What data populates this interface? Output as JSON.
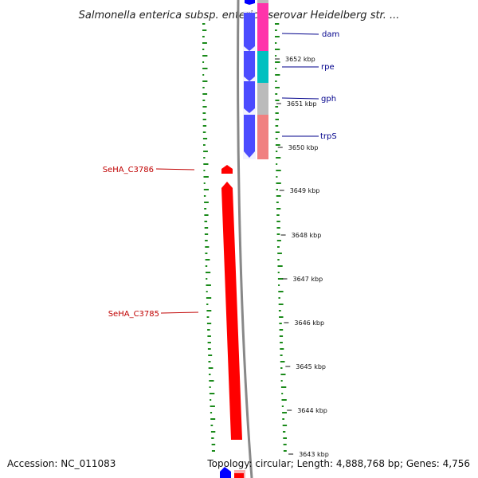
{
  "title": "Salmonella enterica subsp. enterica serovar Heidelberg str. ...",
  "accession": "Accession: NC_011083",
  "topology": "Topology: circular; Length: 4,888,768 bp; Genes: 4,756",
  "ruler": {
    "labels": [
      "3652 kbp",
      "3651 kbp",
      "3650 kbp",
      "3649 kbp",
      "3648 kbp",
      "3647 kbp",
      "3646 kbp",
      "3645 kbp",
      "3644 kbp",
      "3643 kbp"
    ]
  },
  "genes": {
    "forward": [
      {
        "name": "dam",
        "color": "#0000ff"
      },
      {
        "name": "rpe",
        "color": "#0000ff"
      },
      {
        "name": "gph",
        "color": "#0000ff"
      },
      {
        "name": "trpS",
        "color": "#0000ff"
      }
    ],
    "reverse": [
      {
        "name": "SeHA_C3786",
        "color": "#ff0000"
      },
      {
        "name": "SeHA_C3785",
        "color": "#ff0000"
      }
    ]
  },
  "category_colors": [
    "#ff33aa",
    "#00c0c0",
    "#bbbbbb",
    "#f08080"
  ],
  "colors": {
    "forward_strand": "#0000ff",
    "reverse_strand": "#ff0000",
    "backbone": "#888888",
    "gc_ticks": "#1a8a1a",
    "forward_label": "#00008b",
    "reverse_label": "#c00000"
  }
}
